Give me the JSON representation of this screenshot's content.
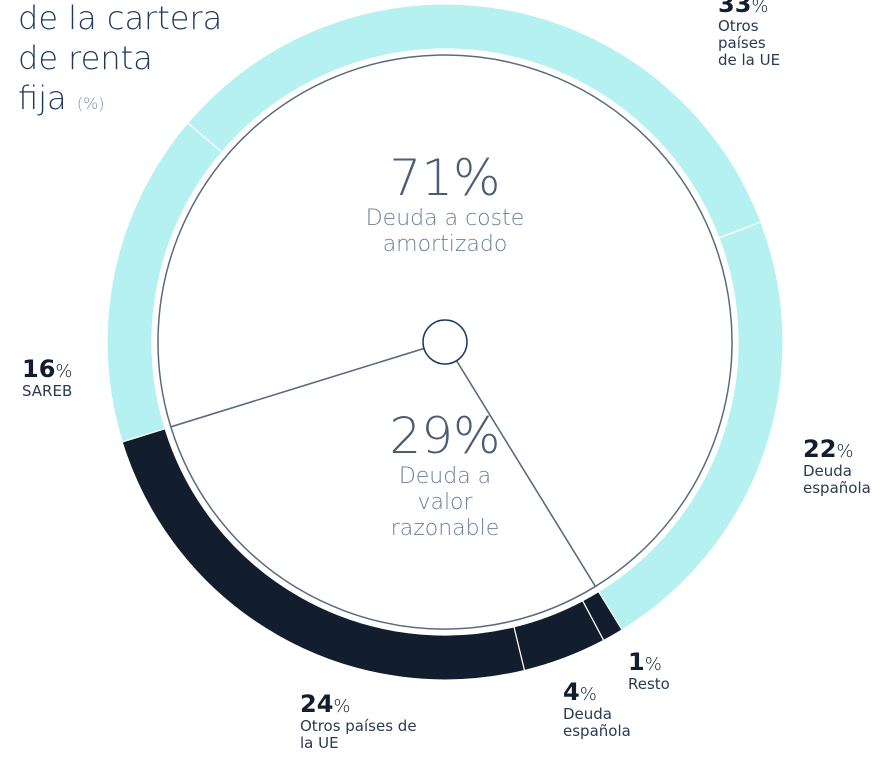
{
  "chart_data": {
    "type": "donut",
    "title": [
      "de la cartera",
      "de renta",
      "fija"
    ],
    "title_unit": "(%)",
    "unit": "%",
    "outer": {
      "categories": [
        "Otros países de la UE",
        "Deuda española",
        "Resto",
        "Deuda española",
        "Otros países de la UE",
        "SAREB"
      ],
      "values": [
        33,
        22,
        1,
        4,
        24,
        16
      ],
      "colors": [
        "#b5f1f1",
        "#b5f1f1",
        "#121d2e",
        "#121d2e",
        "#121d2e",
        "#b5f1f1"
      ]
    },
    "inner": {
      "categories": [
        "Deuda a coste amortizado",
        "Deuda a valor razonable"
      ],
      "values": [
        71,
        29
      ]
    }
  }
}
